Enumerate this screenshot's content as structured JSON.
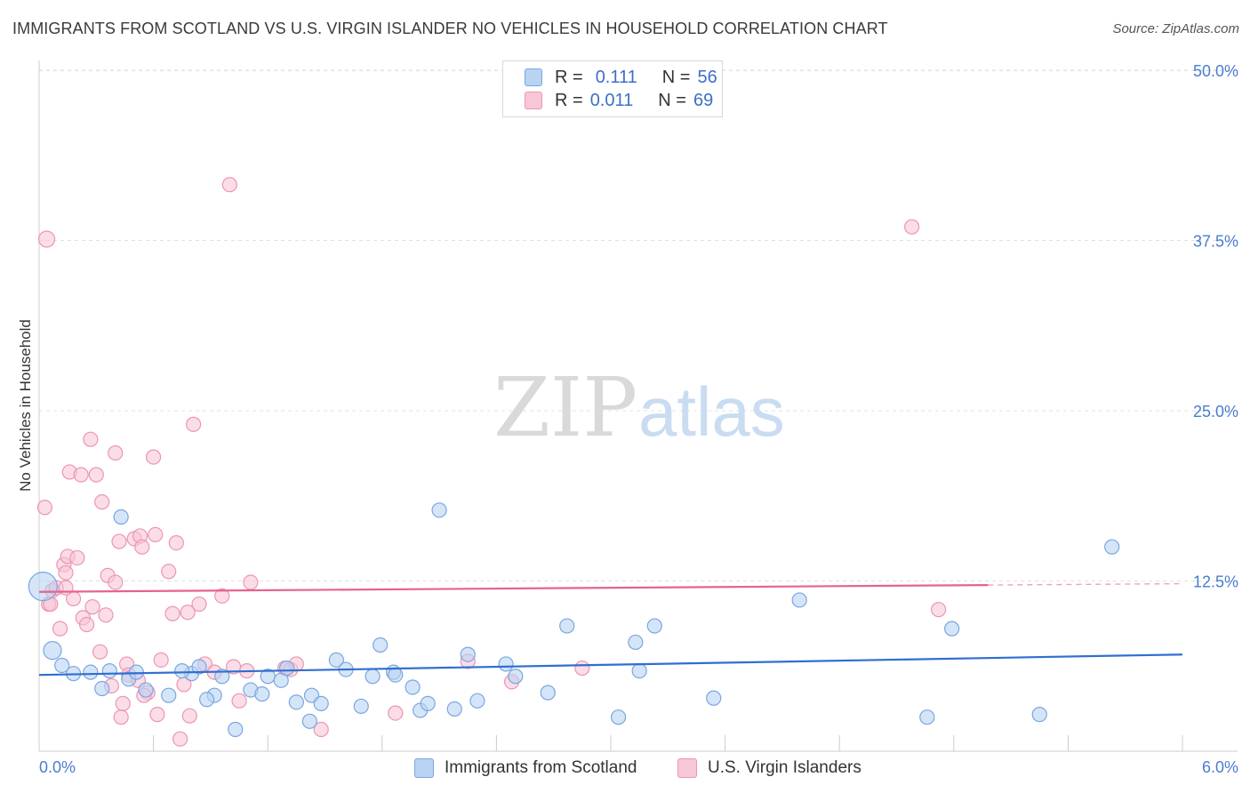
{
  "title": "IMMIGRANTS FROM SCOTLAND VS U.S. VIRGIN ISLANDER NO VEHICLES IN HOUSEHOLD CORRELATION CHART",
  "source": "Source: ZipAtlas.com",
  "watermark": {
    "zip": "ZIP",
    "atlas": "atlas"
  },
  "legend": {
    "rows": [
      {
        "r_label": "R =",
        "r_value": "0.111",
        "n_label": "N =",
        "n_value": "56"
      },
      {
        "r_label": "R =",
        "r_value": "0.011",
        "n_label": "N =",
        "n_value": "69"
      }
    ]
  },
  "colors": {
    "blue_fill": "#b9d3f3",
    "blue_stroke": "#7aa6e0",
    "blue_line": "#2f6fcf",
    "pink_fill": "#f8c7d7",
    "pink_stroke": "#ec95b3",
    "pink_line": "#e5638f",
    "tick_text": "#4a7ccf"
  },
  "chart_data": {
    "type": "scatter",
    "title": "IMMIGRANTS FROM SCOTLAND VS U.S. VIRGIN ISLANDER NO VEHICLES IN HOUSEHOLD CORRELATION CHART",
    "xlabel": "",
    "ylabel": "No Vehicles in Household",
    "xlim": [
      0,
      6.0
    ],
    "ylim": [
      0,
      50.0
    ],
    "x_tick_labels": [
      "0.0%",
      "6.0%"
    ],
    "y_ticks": [
      12.5,
      25.0,
      37.5,
      50.0
    ],
    "y_tick_labels": [
      "12.5%",
      "25.0%",
      "37.5%",
      "50.0%"
    ],
    "grid": "horizontal dashed",
    "series": [
      {
        "name": "Immigrants from Scotland",
        "color": "#b9d3f3",
        "trend": {
          "x": [
            0.0,
            6.0
          ],
          "y": [
            5.6,
            7.1
          ]
        },
        "points": [
          [
            0.02,
            12.1
          ],
          [
            0.07,
            7.4
          ],
          [
            0.12,
            6.3
          ],
          [
            0.18,
            5.7
          ],
          [
            0.27,
            5.8
          ],
          [
            0.33,
            4.6
          ],
          [
            0.37,
            5.9
          ],
          [
            0.43,
            17.2
          ],
          [
            0.47,
            5.3
          ],
          [
            0.51,
            5.8
          ],
          [
            0.56,
            4.5
          ],
          [
            0.68,
            4.1
          ],
          [
            0.8,
            5.7
          ],
          [
            0.84,
            6.2
          ],
          [
            0.92,
            4.1
          ],
          [
            0.96,
            5.5
          ],
          [
            1.03,
            1.6
          ],
          [
            1.11,
            4.5
          ],
          [
            1.17,
            4.2
          ],
          [
            1.2,
            5.5
          ],
          [
            1.27,
            5.2
          ],
          [
            1.3,
            6.1
          ],
          [
            1.35,
            3.6
          ],
          [
            1.42,
            2.2
          ],
          [
            1.43,
            4.1
          ],
          [
            1.56,
            6.7
          ],
          [
            1.61,
            6.0
          ],
          [
            1.69,
            3.3
          ],
          [
            1.75,
            5.5
          ],
          [
            1.79,
            7.8
          ],
          [
            1.86,
            5.8
          ],
          [
            1.87,
            5.6
          ],
          [
            1.96,
            4.7
          ],
          [
            2.0,
            3.0
          ],
          [
            2.04,
            3.5
          ],
          [
            2.1,
            17.7
          ],
          [
            2.18,
            3.1
          ],
          [
            2.25,
            7.1
          ],
          [
            2.3,
            3.7
          ],
          [
            2.45,
            6.4
          ],
          [
            2.5,
            5.5
          ],
          [
            2.67,
            4.3
          ],
          [
            2.77,
            9.2
          ],
          [
            3.04,
            2.5
          ],
          [
            3.13,
            8.0
          ],
          [
            3.15,
            5.9
          ],
          [
            3.23,
            9.2
          ],
          [
            3.54,
            3.9
          ],
          [
            3.99,
            11.1
          ],
          [
            4.66,
            2.5
          ],
          [
            4.79,
            9.0
          ],
          [
            5.25,
            2.7
          ],
          [
            5.63,
            15.0
          ],
          [
            0.75,
            5.9
          ],
          [
            1.48,
            3.5
          ],
          [
            0.88,
            3.8
          ]
        ],
        "sizes": [
          32,
          20,
          16,
          16,
          16,
          16,
          16,
          16,
          16,
          16,
          16,
          16,
          16,
          16,
          16,
          16,
          16,
          16,
          16,
          16,
          16,
          16,
          16,
          16,
          16,
          16,
          16,
          16,
          16,
          16,
          16,
          16,
          16,
          16,
          16,
          16,
          16,
          16,
          16,
          16,
          16,
          16,
          16,
          16,
          16,
          16,
          16,
          16,
          16,
          16,
          16,
          16,
          16,
          16,
          16,
          16
        ]
      },
      {
        "name": "U.S. Virgin Islanders",
        "color": "#f8c7d7",
        "trend": {
          "x": [
            0.0,
            4.98
          ],
          "y": [
            11.7,
            12.2
          ]
        },
        "trend_dashed": {
          "x": [
            4.98,
            6.0
          ],
          "y": [
            12.2,
            12.3
          ]
        },
        "points": [
          [
            0.03,
            17.9
          ],
          [
            0.04,
            37.6
          ],
          [
            0.05,
            10.8
          ],
          [
            0.07,
            11.8
          ],
          [
            0.09,
            12.0
          ],
          [
            0.11,
            9.0
          ],
          [
            0.13,
            13.7
          ],
          [
            0.14,
            13.1
          ],
          [
            0.15,
            14.3
          ],
          [
            0.16,
            20.5
          ],
          [
            0.18,
            11.2
          ],
          [
            0.2,
            14.2
          ],
          [
            0.22,
            20.3
          ],
          [
            0.23,
            9.8
          ],
          [
            0.25,
            9.3
          ],
          [
            0.27,
            22.9
          ],
          [
            0.28,
            10.6
          ],
          [
            0.3,
            20.3
          ],
          [
            0.32,
            7.3
          ],
          [
            0.33,
            18.3
          ],
          [
            0.35,
            10.0
          ],
          [
            0.36,
            12.9
          ],
          [
            0.38,
            4.8
          ],
          [
            0.4,
            12.4
          ],
          [
            0.4,
            21.9
          ],
          [
            0.42,
            15.4
          ],
          [
            0.43,
            2.5
          ],
          [
            0.44,
            3.5
          ],
          [
            0.46,
            6.4
          ],
          [
            0.47,
            5.6
          ],
          [
            0.5,
            15.6
          ],
          [
            0.52,
            5.2
          ],
          [
            0.53,
            15.8
          ],
          [
            0.54,
            15.0
          ],
          [
            0.57,
            4.3
          ],
          [
            0.6,
            21.6
          ],
          [
            0.61,
            15.9
          ],
          [
            0.62,
            2.7
          ],
          [
            0.64,
            6.7
          ],
          [
            0.68,
            13.2
          ],
          [
            0.7,
            10.1
          ],
          [
            0.72,
            15.3
          ],
          [
            0.74,
            0.9
          ],
          [
            0.76,
            4.9
          ],
          [
            0.78,
            10.2
          ],
          [
            0.79,
            2.6
          ],
          [
            0.81,
            24.0
          ],
          [
            0.84,
            10.8
          ],
          [
            0.87,
            6.4
          ],
          [
            0.92,
            5.8
          ],
          [
            0.96,
            11.4
          ],
          [
            1.0,
            41.6
          ],
          [
            1.02,
            6.2
          ],
          [
            1.05,
            3.7
          ],
          [
            1.09,
            5.9
          ],
          [
            1.11,
            12.4
          ],
          [
            1.29,
            6.1
          ],
          [
            1.32,
            6.0
          ],
          [
            1.35,
            6.4
          ],
          [
            1.48,
            1.6
          ],
          [
            1.87,
            2.8
          ],
          [
            2.25,
            6.6
          ],
          [
            2.48,
            5.1
          ],
          [
            2.85,
            6.1
          ],
          [
            4.58,
            38.5
          ],
          [
            4.72,
            10.4
          ],
          [
            0.55,
            4.1
          ],
          [
            0.14,
            12.0
          ],
          [
            0.06,
            10.8
          ]
        ],
        "sizes": [
          16,
          18,
          16,
          16,
          16,
          16,
          16,
          16,
          16,
          16,
          16,
          16,
          16,
          16,
          16,
          16,
          16,
          16,
          16,
          16,
          16,
          16,
          16,
          16,
          16,
          16,
          16,
          16,
          16,
          16,
          16,
          16,
          16,
          16,
          16,
          16,
          16,
          16,
          16,
          16,
          16,
          16,
          16,
          16,
          16,
          16,
          16,
          16,
          16,
          16,
          16,
          16,
          16,
          16,
          16,
          16,
          16,
          16,
          16,
          16,
          16,
          16,
          16,
          16,
          16,
          16,
          16,
          16,
          16
        ]
      }
    ]
  }
}
